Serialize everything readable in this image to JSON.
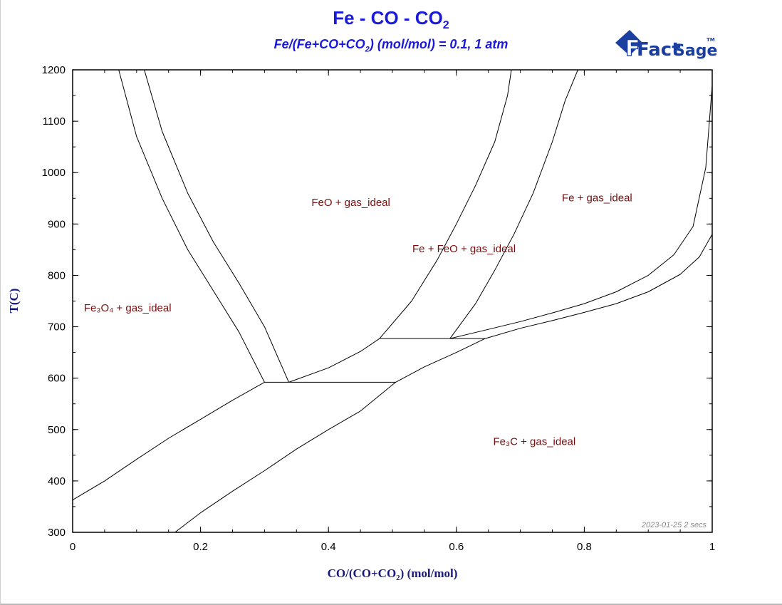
{
  "chart_data": {
    "type": "line",
    "title_parts": [
      "Fe - CO - CO",
      "2"
    ],
    "subtitle_parts": [
      "Fe/(Fe+CO+CO",
      "2",
      ") (mol/mol) = 0.1, 1 atm"
    ],
    "xlabel_parts": [
      "CO/(CO+CO",
      "2",
      ") (mol/mol)"
    ],
    "ylabel": "T(C)",
    "xlim": [
      0,
      1
    ],
    "ylim": [
      300,
      1200
    ],
    "x_ticks": [
      0,
      0.2,
      0.4,
      0.6,
      0.8,
      1
    ],
    "x_tick_labels": [
      "0",
      "0.2",
      "0.4",
      "0.6",
      "0.8",
      "1"
    ],
    "y_ticks": [
      300,
      400,
      500,
      600,
      700,
      800,
      900,
      1000,
      1100,
      1200
    ],
    "y_tick_labels": [
      "300",
      "400",
      "500",
      "600",
      "700",
      "800",
      "900",
      "1000",
      "1100",
      "1200"
    ],
    "x_minor_step": 0.05,
    "y_minor_step": 50,
    "grid": false,
    "series": [
      {
        "points": [
          [
            0.072,
            1200
          ],
          [
            0.1,
            1070
          ],
          [
            0.14,
            950
          ],
          [
            0.18,
            850
          ],
          [
            0.22,
            770
          ],
          [
            0.26,
            690
          ],
          [
            0.3,
            592
          ]
        ]
      },
      {
        "points": [
          [
            0.112,
            1200
          ],
          [
            0.14,
            1080
          ],
          [
            0.18,
            960
          ],
          [
            0.22,
            865
          ],
          [
            0.26,
            785
          ],
          [
            0.3,
            700
          ],
          [
            0.338,
            592
          ]
        ]
      },
      {
        "points": [
          [
            0,
            363
          ],
          [
            0.05,
            400
          ],
          [
            0.1,
            442
          ],
          [
            0.15,
            483
          ],
          [
            0.2,
            520
          ],
          [
            0.25,
            557
          ],
          [
            0.3,
            592
          ]
        ]
      },
      {
        "points": [
          [
            0.3,
            592
          ],
          [
            0.338,
            592
          ],
          [
            0.505,
            592
          ]
        ]
      },
      {
        "points": [
          [
            0.338,
            592
          ],
          [
            0.4,
            620
          ],
          [
            0.45,
            652
          ],
          [
            0.48,
            677
          ]
        ]
      },
      {
        "points": [
          [
            0.48,
            677
          ],
          [
            0.59,
            677
          ],
          [
            0.645,
            677
          ]
        ]
      },
      {
        "points": [
          [
            0.48,
            677
          ],
          [
            0.53,
            750
          ],
          [
            0.57,
            830
          ],
          [
            0.6,
            900
          ],
          [
            0.63,
            975
          ],
          [
            0.66,
            1060
          ],
          [
            0.68,
            1150
          ],
          [
            0.686,
            1200
          ]
        ]
      },
      {
        "points": [
          [
            0.59,
            677
          ],
          [
            0.63,
            745
          ],
          [
            0.66,
            810
          ],
          [
            0.69,
            880
          ],
          [
            0.72,
            960
          ],
          [
            0.75,
            1060
          ],
          [
            0.77,
            1140
          ],
          [
            0.79,
            1200
          ]
        ]
      },
      {
        "points": [
          [
            0.59,
            677
          ],
          [
            0.65,
            695
          ],
          [
            0.7,
            710
          ],
          [
            0.75,
            727
          ],
          [
            0.8,
            745
          ],
          [
            0.85,
            768
          ],
          [
            0.9,
            800
          ],
          [
            0.94,
            840
          ],
          [
            0.97,
            895
          ],
          [
            0.99,
            1010
          ],
          [
            1,
            1170
          ]
        ]
      },
      {
        "points": [
          [
            0.16,
            300
          ],
          [
            0.2,
            338
          ],
          [
            0.25,
            380
          ],
          [
            0.3,
            420
          ],
          [
            0.35,
            462
          ],
          [
            0.4,
            500
          ],
          [
            0.45,
            536
          ],
          [
            0.505,
            592
          ],
          [
            0.55,
            622
          ],
          [
            0.6,
            650
          ],
          [
            0.645,
            677
          ],
          [
            0.7,
            697
          ],
          [
            0.75,
            712
          ],
          [
            0.8,
            728
          ],
          [
            0.85,
            745
          ],
          [
            0.9,
            768
          ],
          [
            0.95,
            802
          ],
          [
            0.98,
            836
          ],
          [
            1,
            880
          ]
        ]
      }
    ],
    "annotations": [
      {
        "text": "FeO + gas_ideal",
        "x": 0.435,
        "y": 935
      },
      {
        "text": "Fe + gas_ideal",
        "x": 0.82,
        "y": 944
      },
      {
        "text": "Fe + FeO + gas_ideal",
        "x": 0.612,
        "y": 845
      },
      {
        "text": "Fe₃O₄ + gas_ideal",
        "x": 0.086,
        "y": 730
      },
      {
        "text": "Fe₃C + gas_ideal",
        "x": 0.722,
        "y": 470
      }
    ],
    "stamp": "2023-01-25  2 secs"
  },
  "logo": {
    "text_main": "Fact",
    "text_sage": "Sage",
    "text_tm": "TM",
    "accent_color": "#1b3fa0"
  },
  "colors": {
    "title": "#1a1adc",
    "axis_title": "#1a1a7a",
    "region_label": "#7a0c0c",
    "line": "#000000"
  }
}
